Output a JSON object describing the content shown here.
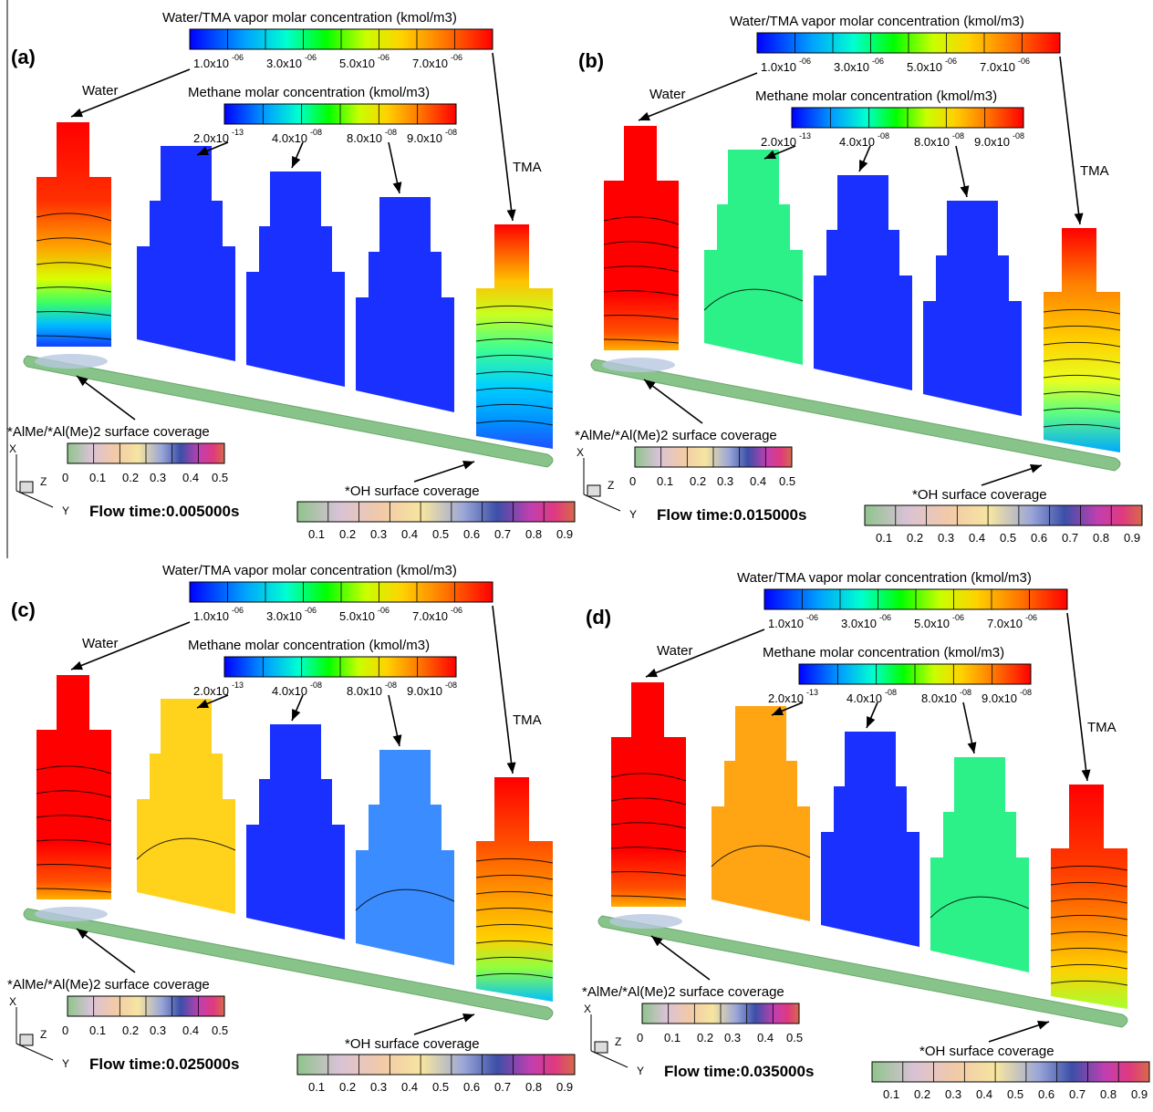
{
  "colors": {
    "water": "#ff0000",
    "tma": "#e60000",
    "rainbow": [
      "#0000ff",
      "#00a0ff",
      "#00ffd0",
      "#00ff00",
      "#c8ff00",
      "#ffd200",
      "#ff7800",
      "#ff0000"
    ],
    "surface_pastel": [
      "#8fc48c",
      "#d8c2d6",
      "#f2c9a8",
      "#f6e5a0",
      "#9aa6d8",
      "#5a3fa2",
      "#d9419b",
      "#d66a4a"
    ],
    "base_tube": "#88c48a",
    "methane_blue": "#1a30ff",
    "methane_cyan": "#3b8cff",
    "methane_green": "#2cf088",
    "methane_lightgreen": "#6ff07a",
    "methane_yellow": "#ffd21c",
    "methane_orange": "#ffa514"
  },
  "panels": [
    {
      "label": "(a)",
      "vapor_title": "Water/TMA vapor molar concentration (kmol/m3)",
      "vapor_ticks": [
        "1.0x10",
        "3.0x10",
        "5.0x10",
        "7.0x10"
      ],
      "vapor_exp": "-06",
      "methane_title": "Methane molar concentration (kmol/m3)",
      "methane_ticks": [
        "2.0x10",
        "4.0x10",
        "8.0x10",
        "9.0x10"
      ],
      "methane_exps": [
        "-13",
        "-08",
        "-08",
        "-08"
      ],
      "water_label": "Water",
      "tma_label": "TMA",
      "alme_title": "*AlMe/*Al(Me)2 surface coverage",
      "alme_ticks": [
        "0",
        "0.1",
        "0.2",
        "0.3",
        "0.4",
        "0.5"
      ],
      "oh_title": "*OH surface coverage",
      "oh_ticks": [
        "0.1",
        "0.2",
        "0.3",
        "0.4",
        "0.5",
        "0.6",
        "0.7",
        "0.8",
        "0.9"
      ],
      "flow_time": "Flow time:0.005000s",
      "axis_x": "X",
      "axis_y": "Y",
      "axis_z": "Z",
      "methane_colors": [
        "#1a30ff",
        "#1a30ff",
        "#1a30ff"
      ]
    },
    {
      "label": "(b)",
      "vapor_title": "Water/TMA vapor molar concentration (kmol/m3)",
      "vapor_ticks": [
        "1.0x10",
        "3.0x10",
        "5.0x10",
        "7.0x10"
      ],
      "vapor_exp": "-06",
      "methane_title": "Methane molar concentration (kmol/m3)",
      "methane_ticks": [
        "2.0x10",
        "4.0x10",
        "8.0x10",
        "9.0x10"
      ],
      "methane_exps": [
        "-13",
        "-08",
        "-08",
        "-08"
      ],
      "water_label": "Water",
      "tma_label": "TMA",
      "alme_title": "*AlMe/*Al(Me)2 surface coverage",
      "alme_ticks": [
        "0",
        "0.1",
        "0.2",
        "0.3",
        "0.4",
        "0.5"
      ],
      "oh_title": "*OH surface coverage",
      "oh_ticks": [
        "0.1",
        "0.2",
        "0.3",
        "0.4",
        "0.5",
        "0.6",
        "0.7",
        "0.8",
        "0.9"
      ],
      "flow_time": "Flow time:0.015000s",
      "axis_x": "X",
      "axis_y": "Y",
      "axis_z": "Z",
      "methane_colors": [
        "#2cf088",
        "#1a30ff",
        "#1a30ff"
      ]
    },
    {
      "label": "(c)",
      "vapor_title": "Water/TMA vapor molar concentration (kmol/m3)",
      "vapor_ticks": [
        "1.0x10",
        "3.0x10",
        "5.0x10",
        "7.0x10"
      ],
      "vapor_exp": "-06",
      "methane_title": "Methane molar concentration (kmol/m3)",
      "methane_ticks": [
        "2.0x10",
        "4.0x10",
        "8.0x10",
        "9.0x10"
      ],
      "methane_exps": [
        "-13",
        "-08",
        "-08",
        "-08"
      ],
      "water_label": "Water",
      "tma_label": "TMA",
      "alme_title": "*AlMe/*Al(Me)2 surface coverage",
      "alme_ticks": [
        "0",
        "0.1",
        "0.2",
        "0.3",
        "0.4",
        "0.5"
      ],
      "oh_title": "*OH surface coverage",
      "oh_ticks": [
        "0.1",
        "0.2",
        "0.3",
        "0.4",
        "0.5",
        "0.6",
        "0.7",
        "0.8",
        "0.9"
      ],
      "flow_time": "Flow time:0.025000s",
      "axis_x": "X",
      "axis_y": "Y",
      "axis_z": "Z",
      "methane_colors": [
        "#ffd21c",
        "#1a30ff",
        "#3b8cff"
      ]
    },
    {
      "label": "(d)",
      "vapor_title": "Water/TMA vapor molar concentration (kmol/m3)",
      "vapor_ticks": [
        "1.0x10",
        "3.0x10",
        "5.0x10",
        "7.0x10"
      ],
      "vapor_exp": "-06",
      "methane_title": "Methane molar concentration (kmol/m3)",
      "methane_ticks": [
        "2.0x10",
        "4.0x10",
        "8.0x10",
        "9.0x10"
      ],
      "methane_exps": [
        "-13",
        "-08",
        "-08",
        "-08"
      ],
      "water_label": "Water",
      "tma_label": "TMA",
      "alme_title": "*AlMe/*Al(Me)2 surface coverage",
      "alme_ticks": [
        "0",
        "0.1",
        "0.2",
        "0.3",
        "0.4",
        "0.5"
      ],
      "oh_title": "*OH surface coverage",
      "oh_ticks": [
        "0.1",
        "0.2",
        "0.3",
        "0.4",
        "0.5",
        "0.6",
        "0.7",
        "0.8",
        "0.9"
      ],
      "flow_time": "Flow time:0.035000s",
      "axis_x": "X",
      "axis_y": "Y",
      "axis_z": "Z",
      "methane_colors": [
        "#ffa514",
        "#1a30ff",
        "#2cf088"
      ]
    }
  ]
}
